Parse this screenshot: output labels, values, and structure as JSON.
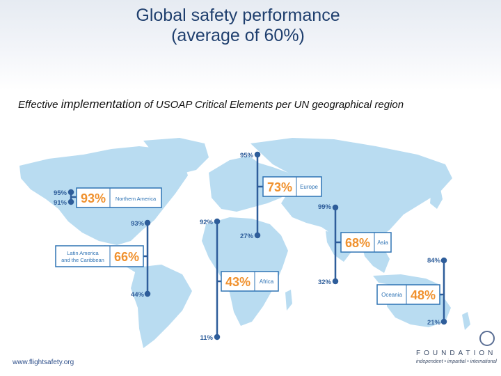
{
  "header": {
    "title_line1": "Global safety performance",
    "title_line2": "(average of 60%)"
  },
  "subtitle": {
    "part1": "Effective",
    "part2": "implementation",
    "part3": "of USOAP Critical Elements per UN geographical region"
  },
  "colors": {
    "map": "#b9dcf1",
    "label_blue": "#2e73b4",
    "value_orange": "#f0912e",
    "line": "#2e5d9a",
    "title": "#1f3f6e"
  },
  "chart_data": {
    "type": "range",
    "regions": [
      {
        "name": "Northern America",
        "average": "93%",
        "max": "95%",
        "min": "91%"
      },
      {
        "name": "Europe",
        "average": "73%",
        "max": "95%",
        "min": "27%"
      },
      {
        "name": "Latin America and the Caribbean",
        "name_line1": "Latin America",
        "name_line2": "and the Caribbean",
        "average": "66%",
        "max": "93%",
        "min": "44%"
      },
      {
        "name": "Africa",
        "average": "43%",
        "max": "92%",
        "min": "11%"
      },
      {
        "name": "Asia",
        "average": "68%",
        "max": "99%",
        "min": "32%"
      },
      {
        "name": "Oceania",
        "average": "48%",
        "max": "84%",
        "min": "21%"
      }
    ]
  },
  "footer": {
    "url": "www.flightsafety.org",
    "logo_word": "FOUNDATION",
    "logo_tagline": "independent • impartial • international"
  }
}
